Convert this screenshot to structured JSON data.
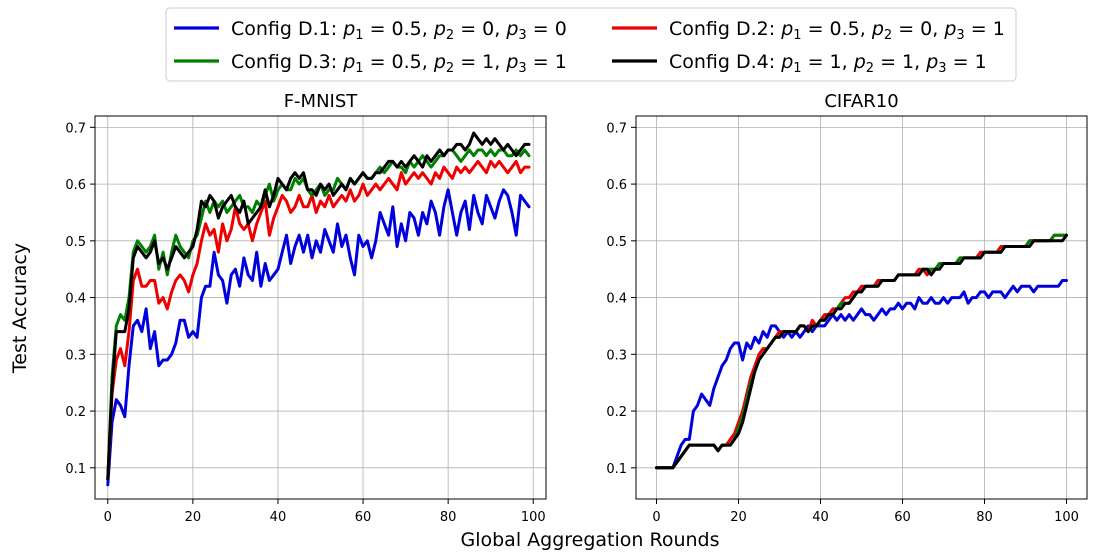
{
  "chart_data": {
    "type": "line",
    "xlabel": "Global Aggregation Rounds",
    "ylabel": "Test Accuracy",
    "legend_position": "top-center",
    "legend": [
      {
        "prefix": "Config D.1: ",
        "params": [
          [
            "p",
            "1",
            "0.5"
          ],
          [
            "p",
            "2",
            "0"
          ],
          [
            "p",
            "3",
            "0"
          ]
        ],
        "color": "#0000dd"
      },
      {
        "prefix": "Config D.2: ",
        "params": [
          [
            "p",
            "1",
            "0.5"
          ],
          [
            "p",
            "2",
            "0"
          ],
          [
            "p",
            "3",
            "1"
          ]
        ],
        "color": "#ee0000"
      },
      {
        "prefix": "Config D.3: ",
        "params": [
          [
            "p",
            "1",
            "0.5"
          ],
          [
            "p",
            "2",
            "1"
          ],
          [
            "p",
            "3",
            "1"
          ]
        ],
        "color": "#008000"
      },
      {
        "prefix": "Config D.4: ",
        "params": [
          [
            "p",
            "1",
            "1"
          ],
          [
            "p",
            "2",
            "1"
          ],
          [
            "p",
            "3",
            "1"
          ]
        ],
        "color": "#000000"
      }
    ],
    "panels": [
      {
        "title": "F-MNIST",
        "xlim": [
          -3,
          103
        ],
        "ylim": [
          0.045,
          0.72
        ],
        "xticks": [
          0,
          20,
          40,
          60,
          80,
          100
        ],
        "yticks": [
          0.1,
          0.2,
          0.3,
          0.4,
          0.5,
          0.6,
          0.7
        ],
        "grid": true,
        "x_max": 99,
        "series": [
          {
            "name": "Config D.1",
            "color": "#0000dd",
            "values": [
              0.07,
              0.18,
              0.22,
              0.21,
              0.19,
              0.28,
              0.35,
              0.36,
              0.34,
              0.38,
              0.31,
              0.34,
              0.28,
              0.29,
              0.29,
              0.3,
              0.32,
              0.36,
              0.36,
              0.33,
              0.34,
              0.33,
              0.4,
              0.42,
              0.42,
              0.48,
              0.44,
              0.43,
              0.39,
              0.44,
              0.45,
              0.42,
              0.47,
              0.44,
              0.43,
              0.48,
              0.42,
              0.46,
              0.43,
              0.44,
              0.45,
              0.48,
              0.51,
              0.46,
              0.49,
              0.51,
              0.48,
              0.51,
              0.47,
              0.5,
              0.48,
              0.52,
              0.5,
              0.48,
              0.53,
              0.49,
              0.51,
              0.47,
              0.44,
              0.51,
              0.49,
              0.5,
              0.47,
              0.5,
              0.55,
              0.53,
              0.51,
              0.56,
              0.49,
              0.53,
              0.5,
              0.55,
              0.54,
              0.51,
              0.55,
              0.53,
              0.57,
              0.55,
              0.51,
              0.56,
              0.59,
              0.55,
              0.51,
              0.55,
              0.57,
              0.52,
              0.58,
              0.55,
              0.53,
              0.58,
              0.56,
              0.54,
              0.57,
              0.59,
              0.58,
              0.55,
              0.51,
              0.58,
              0.57,
              0.56
            ]
          },
          {
            "name": "Config D.2",
            "color": "#ee0000",
            "values": [
              0.08,
              0.23,
              0.29,
              0.31,
              0.28,
              0.34,
              0.43,
              0.45,
              0.42,
              0.42,
              0.43,
              0.43,
              0.39,
              0.4,
              0.38,
              0.41,
              0.43,
              0.44,
              0.43,
              0.41,
              0.44,
              0.46,
              0.5,
              0.53,
              0.51,
              0.52,
              0.48,
              0.53,
              0.5,
              0.52,
              0.56,
              0.53,
              0.52,
              0.53,
              0.5,
              0.53,
              0.55,
              0.57,
              0.51,
              0.54,
              0.56,
              0.58,
              0.57,
              0.55,
              0.56,
              0.58,
              0.56,
              0.56,
              0.58,
              0.55,
              0.57,
              0.56,
              0.58,
              0.56,
              0.57,
              0.58,
              0.57,
              0.59,
              0.57,
              0.58,
              0.6,
              0.58,
              0.59,
              0.6,
              0.59,
              0.6,
              0.61,
              0.6,
              0.59,
              0.62,
              0.6,
              0.61,
              0.62,
              0.61,
              0.62,
              0.61,
              0.6,
              0.62,
              0.61,
              0.63,
              0.62,
              0.61,
              0.63,
              0.62,
              0.63,
              0.62,
              0.63,
              0.64,
              0.63,
              0.62,
              0.64,
              0.63,
              0.64,
              0.63,
              0.62,
              0.63,
              0.64,
              0.62,
              0.63,
              0.63
            ]
          },
          {
            "name": "Config D.3",
            "color": "#008000",
            "values": [
              0.08,
              0.26,
              0.35,
              0.37,
              0.36,
              0.4,
              0.48,
              0.5,
              0.49,
              0.48,
              0.49,
              0.51,
              0.45,
              0.48,
              0.44,
              0.48,
              0.51,
              0.49,
              0.48,
              0.47,
              0.5,
              0.51,
              0.54,
              0.57,
              0.55,
              0.57,
              0.56,
              0.57,
              0.55,
              0.56,
              0.57,
              0.58,
              0.56,
              0.56,
              0.55,
              0.57,
              0.56,
              0.58,
              0.6,
              0.57,
              0.59,
              0.6,
              0.59,
              0.59,
              0.61,
              0.6,
              0.61,
              0.59,
              0.58,
              0.59,
              0.6,
              0.58,
              0.59,
              0.59,
              0.61,
              0.6,
              0.59,
              0.61,
              0.6,
              0.61,
              0.62,
              0.61,
              0.61,
              0.62,
              0.63,
              0.62,
              0.63,
              0.64,
              0.63,
              0.63,
              0.62,
              0.64,
              0.63,
              0.64,
              0.65,
              0.64,
              0.63,
              0.64,
              0.65,
              0.65,
              0.66,
              0.66,
              0.65,
              0.64,
              0.65,
              0.66,
              0.65,
              0.66,
              0.66,
              0.65,
              0.66,
              0.65,
              0.66,
              0.66,
              0.65,
              0.65,
              0.66,
              0.65,
              0.66,
              0.65
            ]
          },
          {
            "name": "Config D.4",
            "color": "#000000",
            "values": [
              0.08,
              0.24,
              0.34,
              0.34,
              0.34,
              0.38,
              0.47,
              0.49,
              0.48,
              0.47,
              0.48,
              0.5,
              0.46,
              0.47,
              0.45,
              0.47,
              0.49,
              0.48,
              0.47,
              0.48,
              0.49,
              0.52,
              0.57,
              0.56,
              0.58,
              0.57,
              0.54,
              0.56,
              0.57,
              0.58,
              0.56,
              0.55,
              0.57,
              0.53,
              0.54,
              0.55,
              0.56,
              0.59,
              0.56,
              0.58,
              0.61,
              0.6,
              0.59,
              0.61,
              0.62,
              0.61,
              0.62,
              0.59,
              0.59,
              0.58,
              0.6,
              0.59,
              0.6,
              0.58,
              0.59,
              0.6,
              0.59,
              0.61,
              0.6,
              0.61,
              0.62,
              0.61,
              0.61,
              0.62,
              0.62,
              0.63,
              0.64,
              0.64,
              0.63,
              0.64,
              0.63,
              0.64,
              0.65,
              0.64,
              0.63,
              0.65,
              0.64,
              0.65,
              0.66,
              0.65,
              0.66,
              0.66,
              0.67,
              0.67,
              0.66,
              0.67,
              0.69,
              0.68,
              0.67,
              0.68,
              0.67,
              0.68,
              0.67,
              0.66,
              0.67,
              0.66,
              0.65,
              0.66,
              0.67,
              0.67
            ]
          }
        ]
      },
      {
        "title": "CIFAR10",
        "xlim": [
          -5,
          105
        ],
        "ylim": [
          0.045,
          0.72
        ],
        "xticks": [
          0,
          20,
          40,
          60,
          80,
          100
        ],
        "yticks": [
          0.1,
          0.2,
          0.3,
          0.4,
          0.5,
          0.6,
          0.7
        ],
        "grid": true,
        "x_max": 100,
        "series": [
          {
            "name": "Config D.1",
            "color": "#0000dd",
            "values": [
              0.1,
              0.1,
              0.1,
              0.1,
              0.1,
              0.12,
              0.14,
              0.15,
              0.15,
              0.2,
              0.21,
              0.23,
              0.22,
              0.21,
              0.24,
              0.26,
              0.28,
              0.29,
              0.31,
              0.32,
              0.32,
              0.29,
              0.32,
              0.31,
              0.33,
              0.32,
              0.34,
              0.33,
              0.35,
              0.35,
              0.34,
              0.33,
              0.34,
              0.33,
              0.34,
              0.33,
              0.34,
              0.35,
              0.34,
              0.35,
              0.35,
              0.35,
              0.36,
              0.37,
              0.36,
              0.37,
              0.36,
              0.37,
              0.36,
              0.37,
              0.38,
              0.37,
              0.37,
              0.36,
              0.37,
              0.38,
              0.37,
              0.38,
              0.38,
              0.39,
              0.38,
              0.39,
              0.39,
              0.38,
              0.4,
              0.39,
              0.39,
              0.4,
              0.39,
              0.39,
              0.4,
              0.39,
              0.4,
              0.4,
              0.4,
              0.41,
              0.39,
              0.4,
              0.4,
              0.41,
              0.41,
              0.4,
              0.41,
              0.41,
              0.41,
              0.4,
              0.41,
              0.42,
              0.41,
              0.42,
              0.42,
              0.42,
              0.41,
              0.42,
              0.42,
              0.42,
              0.42,
              0.42,
              0.42,
              0.43,
              0.43
            ]
          },
          {
            "name": "Config D.2",
            "color": "#ee0000",
            "values": [
              0.1,
              0.1,
              0.1,
              0.1,
              0.1,
              0.11,
              0.12,
              0.13,
              0.14,
              0.14,
              0.14,
              0.14,
              0.14,
              0.14,
              0.14,
              0.13,
              0.14,
              0.14,
              0.15,
              0.16,
              0.18,
              0.2,
              0.23,
              0.26,
              0.28,
              0.3,
              0.31,
              0.31,
              0.32,
              0.33,
              0.34,
              0.34,
              0.34,
              0.34,
              0.34,
              0.35,
              0.35,
              0.34,
              0.36,
              0.35,
              0.36,
              0.37,
              0.37,
              0.38,
              0.38,
              0.39,
              0.4,
              0.4,
              0.41,
              0.41,
              0.42,
              0.42,
              0.42,
              0.42,
              0.43,
              0.43,
              0.43,
              0.43,
              0.43,
              0.44,
              0.44,
              0.44,
              0.44,
              0.44,
              0.45,
              0.45,
              0.44,
              0.45,
              0.45,
              0.46,
              0.46,
              0.46,
              0.46,
              0.46,
              0.47,
              0.47,
              0.47,
              0.47,
              0.47,
              0.48,
              0.48,
              0.48,
              0.48,
              0.48,
              0.49,
              0.49,
              0.49,
              0.49,
              0.49,
              0.49,
              0.49,
              0.5,
              0.5,
              0.5,
              0.5,
              0.5,
              0.5,
              0.51,
              0.51,
              0.51,
              0.51
            ]
          },
          {
            "name": "Config D.3",
            "color": "#008000",
            "values": [
              0.1,
              0.1,
              0.1,
              0.1,
              0.1,
              0.11,
              0.12,
              0.13,
              0.14,
              0.14,
              0.14,
              0.14,
              0.14,
              0.14,
              0.14,
              0.13,
              0.14,
              0.14,
              0.14,
              0.15,
              0.17,
              0.19,
              0.22,
              0.25,
              0.27,
              0.29,
              0.3,
              0.31,
              0.32,
              0.33,
              0.33,
              0.34,
              0.34,
              0.34,
              0.34,
              0.35,
              0.35,
              0.34,
              0.35,
              0.35,
              0.36,
              0.36,
              0.37,
              0.37,
              0.38,
              0.39,
              0.39,
              0.39,
              0.4,
              0.41,
              0.41,
              0.42,
              0.42,
              0.42,
              0.42,
              0.43,
              0.43,
              0.43,
              0.43,
              0.44,
              0.44,
              0.44,
              0.44,
              0.44,
              0.44,
              0.45,
              0.45,
              0.45,
              0.45,
              0.46,
              0.46,
              0.46,
              0.46,
              0.46,
              0.47,
              0.47,
              0.47,
              0.47,
              0.47,
              0.47,
              0.48,
              0.48,
              0.48,
              0.48,
              0.48,
              0.49,
              0.49,
              0.49,
              0.49,
              0.49,
              0.49,
              0.5,
              0.5,
              0.5,
              0.5,
              0.5,
              0.5,
              0.51,
              0.51,
              0.51,
              0.51
            ]
          },
          {
            "name": "Config D.4",
            "color": "#000000",
            "values": [
              0.1,
              0.1,
              0.1,
              0.1,
              0.1,
              0.11,
              0.12,
              0.13,
              0.14,
              0.14,
              0.14,
              0.14,
              0.14,
              0.14,
              0.14,
              0.13,
              0.14,
              0.14,
              0.14,
              0.15,
              0.16,
              0.18,
              0.21,
              0.24,
              0.27,
              0.29,
              0.3,
              0.31,
              0.32,
              0.33,
              0.33,
              0.34,
              0.34,
              0.34,
              0.34,
              0.35,
              0.35,
              0.34,
              0.35,
              0.35,
              0.36,
              0.36,
              0.37,
              0.37,
              0.38,
              0.38,
              0.39,
              0.39,
              0.4,
              0.41,
              0.41,
              0.42,
              0.42,
              0.42,
              0.42,
              0.43,
              0.43,
              0.43,
              0.43,
              0.44,
              0.44,
              0.44,
              0.44,
              0.44,
              0.44,
              0.45,
              0.45,
              0.44,
              0.45,
              0.45,
              0.46,
              0.46,
              0.46,
              0.46,
              0.46,
              0.47,
              0.47,
              0.47,
              0.47,
              0.47,
              0.48,
              0.48,
              0.48,
              0.48,
              0.48,
              0.49,
              0.49,
              0.49,
              0.49,
              0.49,
              0.49,
              0.49,
              0.5,
              0.5,
              0.5,
              0.5,
              0.5,
              0.5,
              0.5,
              0.5,
              0.51
            ]
          }
        ]
      }
    ]
  }
}
